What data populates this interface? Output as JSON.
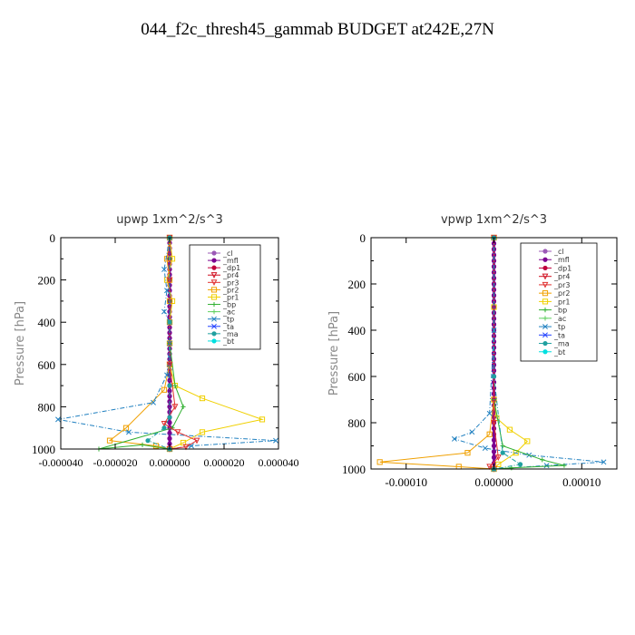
{
  "page": {
    "title": "044_f2c_thresh45_gammab  BUDGET at242E,27N"
  },
  "colors": {
    "_cl": "#9b59b6",
    "_mfl": "#7b0090",
    "_dp1": "#c0003c",
    "_pr4": "#d01020",
    "_pr3": "#e03030",
    "_pr2": "#f0a000",
    "_pr1": "#f0d000",
    "_bp": "#30b030",
    "_ac": "#60d060",
    "_tp": "#2080c0",
    "_ta": "#2040ff",
    "_ma": "#20a0a0",
    "_bt": "#00e0e0"
  },
  "legend_entries": [
    "_cl",
    "_mfl",
    "_dp1",
    "_pr4",
    "_pr3",
    "_pr2",
    "_pr1",
    "_bp",
    "_ac",
    "_tp",
    "_ta",
    "_ma",
    "_bt"
  ],
  "chart_data": [
    {
      "type": "line",
      "title": "upwp   1xm^2/s^3",
      "xlabel": "",
      "ylabel": "Pressure [hPa]",
      "xlim": [
        -4e-05,
        4e-05
      ],
      "ylim": [
        1000,
        0
      ],
      "xticks": [
        -4e-05,
        -2e-05,
        0,
        2e-05,
        4e-05
      ],
      "xtick_labels": [
        "-0.000040",
        "-0.000020",
        "0.000000",
        "0.000020",
        "0.000040"
      ],
      "yticks": [
        0,
        200,
        400,
        600,
        800,
        1000
      ],
      "ytick_labels": [
        "0",
        "200",
        "400",
        "600",
        "800",
        "1000"
      ],
      "legend_position": "upper-right",
      "series": [
        {
          "name": "_cl",
          "x": [
            0,
            0,
            0,
            0,
            0,
            0,
            0,
            0,
            0,
            0,
            0
          ],
          "y": [
            0,
            100,
            200,
            300,
            400,
            500,
            600,
            700,
            800,
            900,
            1000
          ]
        },
        {
          "name": "_mfl",
          "x": [
            0,
            0,
            0,
            0,
            0,
            0,
            0,
            0,
            0,
            0,
            0
          ],
          "y": [
            0,
            100,
            200,
            300,
            400,
            500,
            600,
            700,
            800,
            900,
            1000
          ]
        },
        {
          "name": "_pr1",
          "x": [
            0,
            1e-06,
            -1e-06,
            1e-06,
            0,
            0,
            0,
            2e-06,
            1.2e-05,
            3.4e-05,
            1.2e-05,
            5e-06,
            0
          ],
          "y": [
            0,
            100,
            200,
            300,
            400,
            500,
            600,
            700,
            760,
            860,
            920,
            970,
            1000
          ]
        },
        {
          "name": "_pr2",
          "x": [
            0,
            -1e-06,
            0,
            0,
            0,
            0,
            0,
            -2e-06,
            -1.6e-05,
            -2.2e-05,
            -5e-06,
            0
          ],
          "y": [
            0,
            100,
            200,
            300,
            400,
            500,
            600,
            720,
            900,
            960,
            985,
            1000
          ]
        },
        {
          "name": "_tp",
          "x": [
            0,
            -2e-06,
            -1e-06,
            -2e-06,
            0,
            0,
            -1e-06,
            -6e-06,
            -4.1e-05,
            -1.5e-05,
            3.9e-05,
            8e-06,
            0
          ],
          "y": [
            0,
            150,
            250,
            350,
            400,
            500,
            650,
            780,
            860,
            920,
            960,
            985,
            1000
          ]
        },
        {
          "name": "_bp",
          "x": [
            0,
            0,
            0,
            0,
            0,
            0,
            2e-06,
            5e-06,
            1e-06,
            -2.6e-05,
            -1e-05,
            0
          ],
          "y": [
            0,
            100,
            200,
            300,
            400,
            500,
            700,
            800,
            900,
            1000,
            980,
            1000
          ]
        },
        {
          "name": "_pr3",
          "x": [
            0,
            0,
            0,
            2e-06,
            -2e-06,
            3e-06,
            1e-05,
            6e-06,
            0
          ],
          "y": [
            0,
            200,
            600,
            800,
            880,
            920,
            960,
            990,
            1000
          ]
        },
        {
          "name": "_ma",
          "x": [
            0,
            0,
            0,
            0,
            -2e-06,
            -8e-06,
            0
          ],
          "y": [
            0,
            400,
            700,
            850,
            900,
            960,
            1000
          ]
        }
      ]
    },
    {
      "type": "line",
      "title": "vpwp   1xm^2/s^3",
      "xlabel": "",
      "ylabel": "Pressure [hPa]",
      "xlim": [
        -0.00014,
        0.00014
      ],
      "ylim": [
        1000,
        0
      ],
      "xticks": [
        -0.0001,
        0,
        0.0001
      ],
      "xtick_labels": [
        "-0.00010",
        "0.00000",
        "0.00010"
      ],
      "yticks": [
        0,
        200,
        400,
        600,
        800,
        1000
      ],
      "ytick_labels": [
        "0",
        "200",
        "400",
        "600",
        "800",
        "1000"
      ],
      "legend_position": "upper-right",
      "series": [
        {
          "name": "_cl",
          "x": [
            0,
            0,
            0,
            0,
            0,
            0,
            0,
            0,
            0,
            0,
            0
          ],
          "y": [
            0,
            100,
            200,
            300,
            400,
            500,
            600,
            700,
            800,
            900,
            1000
          ]
        },
        {
          "name": "_mfl",
          "x": [
            0,
            0,
            0,
            0,
            0,
            0,
            0,
            0,
            0,
            0,
            0
          ],
          "y": [
            0,
            100,
            200,
            300,
            400,
            500,
            600,
            700,
            800,
            900,
            1000
          ]
        },
        {
          "name": "_pr1",
          "x": [
            0,
            0,
            0,
            3e-06,
            1.8e-05,
            3.8e-05,
            2.5e-05,
            5e-06,
            0
          ],
          "y": [
            0,
            300,
            700,
            780,
            830,
            880,
            930,
            980,
            1000
          ]
        },
        {
          "name": "_pr2",
          "x": [
            0,
            0,
            -5e-06,
            -3e-05,
            -0.00013,
            -4e-05,
            0
          ],
          "y": [
            0,
            700,
            850,
            930,
            970,
            990,
            1000
          ]
        },
        {
          "name": "_tp",
          "x": [
            0,
            0,
            -5e-06,
            -2.5e-05,
            -4.5e-05,
            -1e-05,
            4e-05,
            0.000125,
            6e-05,
            0
          ],
          "y": [
            0,
            400,
            760,
            840,
            870,
            910,
            940,
            970,
            985,
            1000
          ]
        },
        {
          "name": "_bp",
          "x": [
            0,
            0,
            1e-05,
            5.5e-05,
            8e-05,
            2e-05,
            0
          ],
          "y": [
            0,
            700,
            900,
            960,
            985,
            995,
            1000
          ]
        },
        {
          "name": "_pr3",
          "x": [
            0,
            0,
            5e-06,
            -5e-06,
            0
          ],
          "y": [
            0,
            800,
            950,
            990,
            1000
          ]
        },
        {
          "name": "_ma",
          "x": [
            0,
            0,
            1e-05,
            3e-05,
            0
          ],
          "y": [
            0,
            600,
            930,
            980,
            1000
          ]
        }
      ]
    }
  ]
}
